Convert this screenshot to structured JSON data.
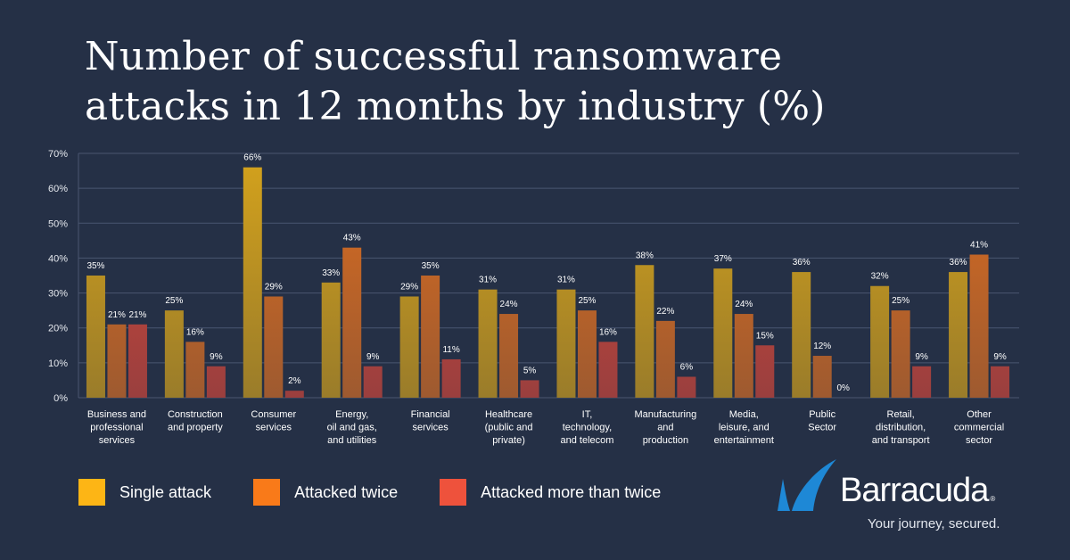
{
  "title": {
    "line1": "Number of successful ransomware",
    "line2": "attacks in 12 months by industry (%)"
  },
  "chart_data": {
    "type": "bar",
    "title": "Number of successful ransomware attacks in 12 months by industry (%)",
    "xlabel": "",
    "ylabel": "",
    "ylim": [
      0,
      70
    ],
    "yticks": [
      0,
      10,
      20,
      30,
      40,
      50,
      60,
      70
    ],
    "ytick_labels": [
      "0%",
      "10%",
      "20%",
      "30%",
      "40%",
      "50%",
      "60%",
      "70%"
    ],
    "grid": true,
    "legend_position": "bottom-left",
    "categories": [
      [
        "Business and",
        "professional",
        "services"
      ],
      [
        "Construction",
        "and property"
      ],
      [
        "Consumer",
        "services"
      ],
      [
        "Energy,",
        "oil and gas,",
        "and utilities"
      ],
      [
        "Financial",
        "services"
      ],
      [
        "Healthcare",
        "(public and",
        "private)"
      ],
      [
        "IT,",
        "technology,",
        "and telecom"
      ],
      [
        "Manufacturing",
        "and",
        "production"
      ],
      [
        "Media,",
        "leisure, and",
        "entertainment"
      ],
      [
        "Public",
        "Sector"
      ],
      [
        "Retail,",
        "distribution,",
        "and transport"
      ],
      [
        "Other",
        "commercial",
        "sector"
      ]
    ],
    "series": [
      {
        "name": "Single attack",
        "color": "#f5b31a",
        "color_top": "#d4a21c",
        "color_bottom": "#9a7c2a",
        "values": [
          35,
          25,
          66,
          33,
          29,
          31,
          31,
          38,
          37,
          36,
          32,
          36
        ]
      },
      {
        "name": "Attacked twice",
        "color": "#f4781c",
        "color_top": "#dc6d1f",
        "color_bottom": "#9e5a30",
        "values": [
          21,
          16,
          29,
          43,
          35,
          24,
          25,
          22,
          24,
          12,
          25,
          41
        ]
      },
      {
        "name": "Attacked more than twice",
        "color": "#ee5440",
        "color_top": "#d6493a",
        "color_bottom": "#9a3f3e",
        "values": [
          21,
          9,
          2,
          9,
          11,
          5,
          16,
          6,
          15,
          0,
          9,
          9
        ]
      }
    ],
    "data_label_suffix": "%"
  },
  "legend": [
    {
      "label": "Single attack",
      "color": "#fdb515"
    },
    {
      "label": "Attacked twice",
      "color": "#f97a19"
    },
    {
      "label": "Attacked more than twice",
      "color": "#ee523c"
    }
  ],
  "brand": {
    "name": "Barracuda",
    "registered": "®",
    "tagline": "Your journey, secured.",
    "logo_color": "#1e88d6"
  }
}
